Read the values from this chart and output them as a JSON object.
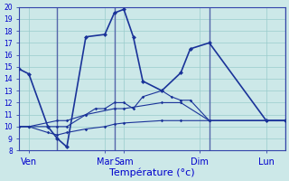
{
  "xlabel": "Température (°c)",
  "background_color": "#cce8e8",
  "grid_color": "#99cccc",
  "line_color": "#1a3399",
  "ylim": [
    8,
    20
  ],
  "yticks": [
    8,
    9,
    10,
    11,
    12,
    13,
    14,
    15,
    16,
    17,
    18,
    19,
    20
  ],
  "xlim": [
    0,
    28
  ],
  "xtick_pos": [
    1,
    9,
    11,
    19,
    26
  ],
  "xtick_labels": [
    "Ven",
    "Mar",
    "Sam",
    "Dim",
    "Lun"
  ],
  "vline_pos": [
    4,
    10,
    20,
    28
  ],
  "series": [
    {
      "x": [
        0,
        1,
        3,
        4,
        5,
        7,
        9,
        10,
        11,
        12,
        13,
        15,
        17,
        18,
        20,
        26,
        28
      ],
      "y": [
        14.8,
        14.4,
        10.0,
        9.0,
        8.3,
        17.5,
        17.7,
        19.5,
        19.8,
        17.5,
        13.8,
        13.0,
        14.5,
        16.5,
        17.0,
        10.5,
        10.5
      ],
      "lw": 1.2,
      "ms": 2.5
    },
    {
      "x": [
        0,
        1,
        4,
        5,
        7,
        8,
        9,
        10,
        11,
        12,
        13,
        15,
        16,
        17,
        18,
        20,
        26,
        28
      ],
      "y": [
        10.0,
        10.0,
        10.0,
        10.0,
        11.0,
        11.5,
        11.5,
        12.0,
        12.0,
        11.5,
        12.5,
        13.0,
        12.5,
        12.2,
        12.2,
        10.5,
        10.5,
        10.5
      ],
      "lw": 0.8,
      "ms": 1.8
    },
    {
      "x": [
        0,
        1,
        4,
        5,
        7,
        10,
        11,
        15,
        17,
        20,
        26,
        28
      ],
      "y": [
        10.0,
        10.0,
        10.5,
        10.5,
        11.0,
        11.5,
        11.5,
        12.0,
        12.0,
        10.5,
        10.5,
        10.5
      ],
      "lw": 0.8,
      "ms": 1.8
    },
    {
      "x": [
        0,
        1,
        3,
        4,
        5,
        7,
        9,
        10,
        11,
        15,
        17,
        20,
        26,
        28
      ],
      "y": [
        10.0,
        10.0,
        9.5,
        9.3,
        9.5,
        9.8,
        10.0,
        10.2,
        10.3,
        10.5,
        10.5,
        10.5,
        10.5,
        10.5
      ],
      "lw": 0.8,
      "ms": 1.8
    }
  ]
}
